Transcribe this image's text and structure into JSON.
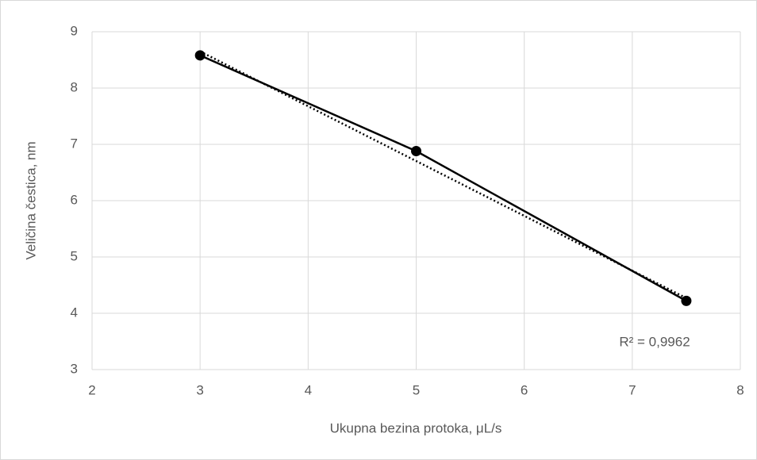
{
  "chart_data": {
    "type": "line",
    "xlabel": "Ukupna bezina protoka, μL/s",
    "ylabel": "Veličina čestica, nm",
    "series": [
      {
        "name": "Veličina čestica",
        "color": "#000000",
        "x": [
          3,
          5,
          7.5
        ],
        "values": [
          8.58,
          6.88,
          4.22
        ]
      }
    ],
    "trendline": {
      "x": [
        3,
        7.5
      ],
      "values": [
        8.65,
        4.27
      ],
      "color": "#000000",
      "style": "dotted",
      "label": "R² = 0,9962"
    },
    "xlim": [
      2,
      8
    ],
    "xticks": [
      2,
      3,
      4,
      5,
      6,
      7,
      8
    ],
    "ylim": [
      3,
      9
    ],
    "yticks": [
      3,
      4,
      5,
      6,
      7,
      8,
      9
    ],
    "grid": true
  }
}
